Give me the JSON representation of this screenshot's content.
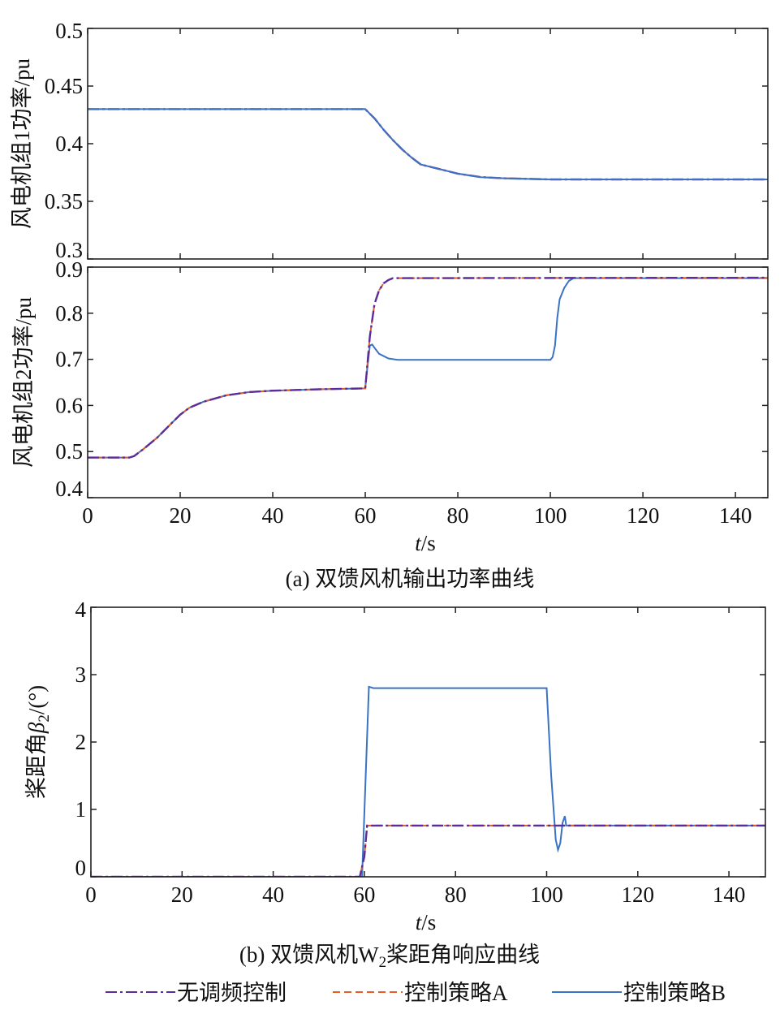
{
  "colors": {
    "none": "#5b2c9a",
    "A": "#e0602a",
    "B": "#3a72c4",
    "axis": "#222222"
  },
  "legend": [
    {
      "key": "none",
      "label": "无调频控制",
      "style": "dash-dot"
    },
    {
      "key": "A",
      "label": "控制策略A",
      "style": "dashed"
    },
    {
      "key": "B",
      "label": "控制策略B",
      "style": "solid"
    }
  ],
  "captions": {
    "a": "(a) 双馈风机输出功率曲线",
    "b_pre": "(b) 双馈风机W",
    "b_sub": "2",
    "b_post": "桨距角响应曲线"
  },
  "chart_data": [
    {
      "type": "line",
      "ylabel": "风电机组1功率/pu",
      "xlim": [
        0,
        147
      ],
      "ylim": [
        0.3,
        0.5
      ],
      "yticks": [
        "0.5",
        "0.45",
        "0.4",
        "0.35",
        "0.3"
      ],
      "ytick_values": [
        0.5,
        0.45,
        0.4,
        0.35,
        0.3
      ],
      "xticks": [
        0,
        20,
        40,
        60,
        80,
        100,
        120,
        140
      ],
      "show_xtick_labels": false,
      "series": [
        {
          "key": "none",
          "points": [
            [
              0,
              0.43
            ],
            [
              60,
              0.43
            ],
            [
              62,
              0.422
            ],
            [
              64,
              0.412
            ],
            [
              66,
              0.403
            ],
            [
              68,
              0.395
            ],
            [
              70,
              0.388
            ],
            [
              72,
              0.382
            ],
            [
              75,
              0.379
            ],
            [
              80,
              0.374
            ],
            [
              85,
              0.371
            ],
            [
              90,
              0.37
            ],
            [
              100,
              0.369
            ],
            [
              147,
              0.369
            ]
          ]
        },
        {
          "key": "A",
          "points": [
            [
              0,
              0.43
            ],
            [
              60,
              0.43
            ],
            [
              62,
              0.422
            ],
            [
              64,
              0.412
            ],
            [
              66,
              0.403
            ],
            [
              68,
              0.395
            ],
            [
              70,
              0.388
            ],
            [
              72,
              0.382
            ],
            [
              75,
              0.379
            ],
            [
              80,
              0.374
            ],
            [
              85,
              0.371
            ],
            [
              90,
              0.37
            ],
            [
              100,
              0.369
            ],
            [
              147,
              0.369
            ]
          ]
        },
        {
          "key": "B",
          "points": [
            [
              0,
              0.43
            ],
            [
              60,
              0.43
            ],
            [
              62,
              0.422
            ],
            [
              64,
              0.412
            ],
            [
              66,
              0.403
            ],
            [
              68,
              0.395
            ],
            [
              70,
              0.388
            ],
            [
              72,
              0.382
            ],
            [
              75,
              0.379
            ],
            [
              80,
              0.374
            ],
            [
              85,
              0.371
            ],
            [
              90,
              0.37
            ],
            [
              100,
              0.369
            ],
            [
              147,
              0.369
            ]
          ]
        }
      ]
    },
    {
      "type": "line",
      "ylabel": "风电机组2功率/pu",
      "xlabel_italic": "t",
      "xlabel_rest": "/s",
      "xlim": [
        0,
        147
      ],
      "ylim": [
        0.4,
        0.9
      ],
      "yticks": [
        "0.9",
        "0.8",
        "0.7",
        "0.6",
        "0.5",
        "0.4"
      ],
      "ytick_values": [
        0.9,
        0.8,
        0.7,
        0.6,
        0.5,
        0.4
      ],
      "xticks": [
        0,
        20,
        40,
        60,
        80,
        100,
        120,
        140
      ],
      "show_xtick_labels": true,
      "series": [
        {
          "key": "B",
          "points": [
            [
              0,
              0.487
            ],
            [
              9,
              0.487
            ],
            [
              10,
              0.49
            ],
            [
              12,
              0.505
            ],
            [
              15,
              0.53
            ],
            [
              18,
              0.56
            ],
            [
              20,
              0.58
            ],
            [
              22,
              0.595
            ],
            [
              25,
              0.608
            ],
            [
              30,
              0.622
            ],
            [
              35,
              0.629
            ],
            [
              40,
              0.632
            ],
            [
              50,
              0.635
            ],
            [
              60,
              0.637
            ],
            [
              60.2,
              0.66
            ],
            [
              61,
              0.73
            ],
            [
              61.5,
              0.732
            ],
            [
              62,
              0.725
            ],
            [
              63,
              0.712
            ],
            [
              65,
              0.702
            ],
            [
              67,
              0.699
            ],
            [
              100,
              0.699
            ],
            [
              100.5,
              0.705
            ],
            [
              101,
              0.73
            ],
            [
              101.5,
              0.79
            ],
            [
              102,
              0.83
            ],
            [
              103,
              0.855
            ],
            [
              104,
              0.87
            ],
            [
              105,
              0.876
            ],
            [
              147,
              0.876
            ]
          ]
        },
        {
          "key": "A",
          "points": [
            [
              0,
              0.487
            ],
            [
              9,
              0.487
            ],
            [
              10,
              0.49
            ],
            [
              12,
              0.505
            ],
            [
              15,
              0.53
            ],
            [
              18,
              0.56
            ],
            [
              20,
              0.58
            ],
            [
              22,
              0.595
            ],
            [
              25,
              0.608
            ],
            [
              30,
              0.622
            ],
            [
              35,
              0.629
            ],
            [
              40,
              0.632
            ],
            [
              50,
              0.635
            ],
            [
              60,
              0.637
            ],
            [
              60.2,
              0.66
            ],
            [
              61,
              0.75
            ],
            [
              62,
              0.82
            ],
            [
              63,
              0.85
            ],
            [
              64,
              0.865
            ],
            [
              65,
              0.872
            ],
            [
              66,
              0.876
            ],
            [
              147,
              0.877
            ]
          ]
        },
        {
          "key": "none",
          "points": [
            [
              0,
              0.487
            ],
            [
              9,
              0.487
            ],
            [
              10,
              0.49
            ],
            [
              12,
              0.505
            ],
            [
              15,
              0.53
            ],
            [
              18,
              0.56
            ],
            [
              20,
              0.58
            ],
            [
              22,
              0.595
            ],
            [
              25,
              0.608
            ],
            [
              30,
              0.622
            ],
            [
              35,
              0.629
            ],
            [
              40,
              0.632
            ],
            [
              50,
              0.635
            ],
            [
              60,
              0.637
            ],
            [
              60.2,
              0.66
            ],
            [
              61,
              0.75
            ],
            [
              62,
              0.82
            ],
            [
              63,
              0.85
            ],
            [
              64,
              0.865
            ],
            [
              65,
              0.872
            ],
            [
              66,
              0.876
            ],
            [
              147,
              0.877
            ]
          ]
        }
      ]
    },
    {
      "type": "line",
      "ylabel_pre": "桨距角",
      "ylabel_italic": "β",
      "ylabel_sub": "2",
      "ylabel_post": "/(°)",
      "xlabel_italic": "t",
      "xlabel_rest": "/s",
      "xlim": [
        0,
        148
      ],
      "ylim": [
        0,
        4
      ],
      "yticks": [
        "4",
        "3",
        "2",
        "1",
        "0"
      ],
      "ytick_values": [
        4,
        3,
        2,
        1,
        0
      ],
      "xticks": [
        0,
        20,
        40,
        60,
        80,
        100,
        120,
        140
      ],
      "show_xtick_labels": true,
      "series": [
        {
          "key": "B",
          "points": [
            [
              0,
              0
            ],
            [
              59.5,
              0
            ],
            [
              61,
              2.82
            ],
            [
              62,
              2.8
            ],
            [
              100,
              2.8
            ],
            [
              101,
              1.5
            ],
            [
              102,
              0.55
            ],
            [
              102.5,
              0.4
            ],
            [
              103,
              0.5
            ],
            [
              103.5,
              0.8
            ],
            [
              104,
              0.9
            ],
            [
              104.3,
              0.76
            ],
            [
              148,
              0.76
            ]
          ]
        },
        {
          "key": "A",
          "points": [
            [
              0,
              0
            ],
            [
              59,
              0
            ],
            [
              60,
              0.3
            ],
            [
              60.6,
              0.76
            ],
            [
              148,
              0.76
            ]
          ]
        },
        {
          "key": "none",
          "points": [
            [
              0,
              0
            ],
            [
              59,
              0
            ],
            [
              60,
              0.3
            ],
            [
              60.6,
              0.76
            ],
            [
              148,
              0.76
            ]
          ]
        }
      ]
    }
  ]
}
